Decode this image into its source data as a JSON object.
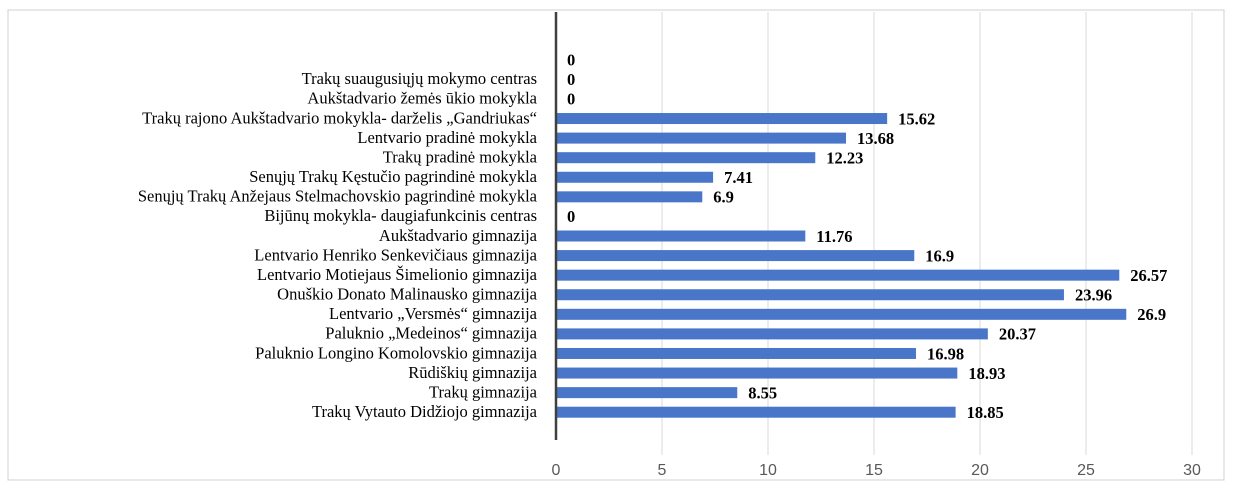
{
  "chart_data": {
    "type": "bar",
    "orientation": "horizontal",
    "categories": [
      null,
      "Trakų suaugusiųjų mokymo centras",
      "Aukštadvario žemės ūkio mokykla",
      "Trakų rajono Aukštadvario mokykla- darželis „Gandriukas“",
      "Lentvario pradinė mokykla",
      "Trakų pradinė mokykla",
      "Senųjų Trakų Kęstučio pagrindinė mokykla",
      "Senųjų Trakų Anžejaus Stelmachovskio pagrindinė mokykla",
      "Bijūnų mokykla- daugiafunkcinis centras",
      "Aukštadvario gimnazija",
      "Lentvario Henriko Senkevičiaus gimnazija",
      "Lentvario Motiejaus Šimelionio gimnazija",
      "Onuškio Donato Malinausko gimnazija",
      "Lentvario „Versmės“ gimnazija",
      "Paluknio „Medeinos“ gimnazija",
      "Paluknio Longino Komolovskio gimnazija",
      "Rūdiškių gimnazija",
      "Trakų gimnazija",
      "Trakų Vytauto Didžiojo gimnazija"
    ],
    "values": [
      0,
      0,
      0,
      15.62,
      13.68,
      12.23,
      7.41,
      6.9,
      0,
      11.76,
      16.9,
      26.57,
      23.96,
      26.9,
      20.37,
      16.98,
      18.93,
      8.55,
      18.85
    ],
    "color": "#4a76c9",
    "xlim": [
      0,
      30
    ],
    "xticks": [
      0,
      5,
      10,
      15,
      20,
      25,
      30
    ],
    "grid": true
  }
}
